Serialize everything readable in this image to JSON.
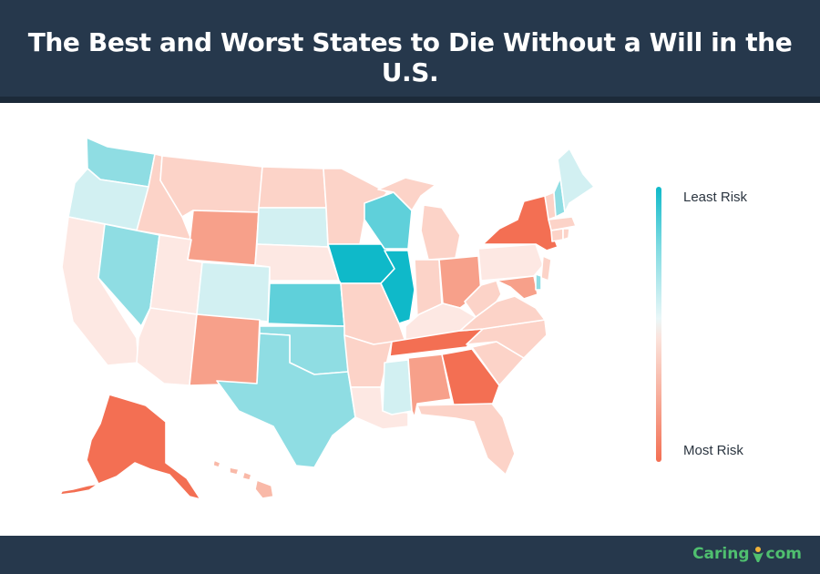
{
  "header": {
    "title": "The Best and Worst States to Die Without a Will in the U.S."
  },
  "legend": {
    "top_label": "Least Risk",
    "bottom_label": "Most Risk"
  },
  "footer": {
    "brand_left": "Caring",
    "brand_right": "com",
    "logo_icon": "caring-person-icon"
  },
  "colors": {
    "header_bg": "#26384c",
    "teal_dark": "#0fb9c9",
    "teal": "#5fd0da",
    "teal_mid": "#8fdde3",
    "teal_light": "#d2f0f2",
    "neutral_light": "#fde8e3",
    "salmon_light": "#fcd3c8",
    "salmon": "#f9b9a8",
    "salmon_mid": "#f7a08a",
    "salmon_dark": "#f36f53"
  }
}
